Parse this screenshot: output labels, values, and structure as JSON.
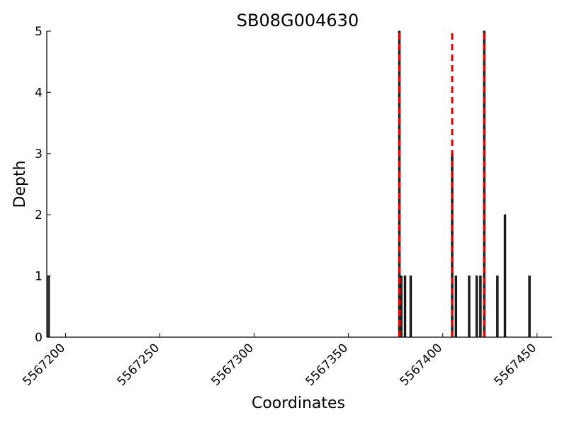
{
  "chart_data": {
    "type": "bar",
    "title": "SB08G004630",
    "xlabel": "Coordinates",
    "ylabel": "Depth",
    "xlim": [
      5567190,
      5567458
    ],
    "ylim": [
      0,
      5
    ],
    "xticks": [
      5567200,
      5567250,
      5567300,
      5567350,
      5567400,
      5567450
    ],
    "xtick_labels": [
      "5567200",
      "5567250",
      "5567300",
      "5567350",
      "5567400",
      "5567450"
    ],
    "yticks": [
      0,
      1,
      2,
      3,
      4,
      5
    ],
    "ytick_labels": [
      "0",
      "1",
      "2",
      "3",
      "4",
      "5"
    ],
    "grid": false,
    "bar_color": "#333333",
    "bars": [
      {
        "x": 5567191,
        "depth": 1
      },
      {
        "x": 5567377,
        "depth": 5
      },
      {
        "x": 5567378,
        "depth": 1
      },
      {
        "x": 5567380,
        "depth": 1
      },
      {
        "x": 5567383,
        "depth": 1
      },
      {
        "x": 5567405,
        "depth": 3
      },
      {
        "x": 5567407,
        "depth": 1
      },
      {
        "x": 5567414,
        "depth": 1
      },
      {
        "x": 5567418,
        "depth": 1
      },
      {
        "x": 5567420,
        "depth": 1
      },
      {
        "x": 5567422,
        "depth": 5
      },
      {
        "x": 5567429,
        "depth": 1
      },
      {
        "x": 5567433,
        "depth": 2
      },
      {
        "x": 5567446,
        "depth": 1
      }
    ],
    "vlines": [
      {
        "x": 5567377,
        "color": "#e00000",
        "style": "dashed"
      },
      {
        "x": 5567405,
        "color": "#e00000",
        "style": "dashed"
      },
      {
        "x": 5567422,
        "color": "#e00000",
        "style": "dashed"
      }
    ]
  }
}
